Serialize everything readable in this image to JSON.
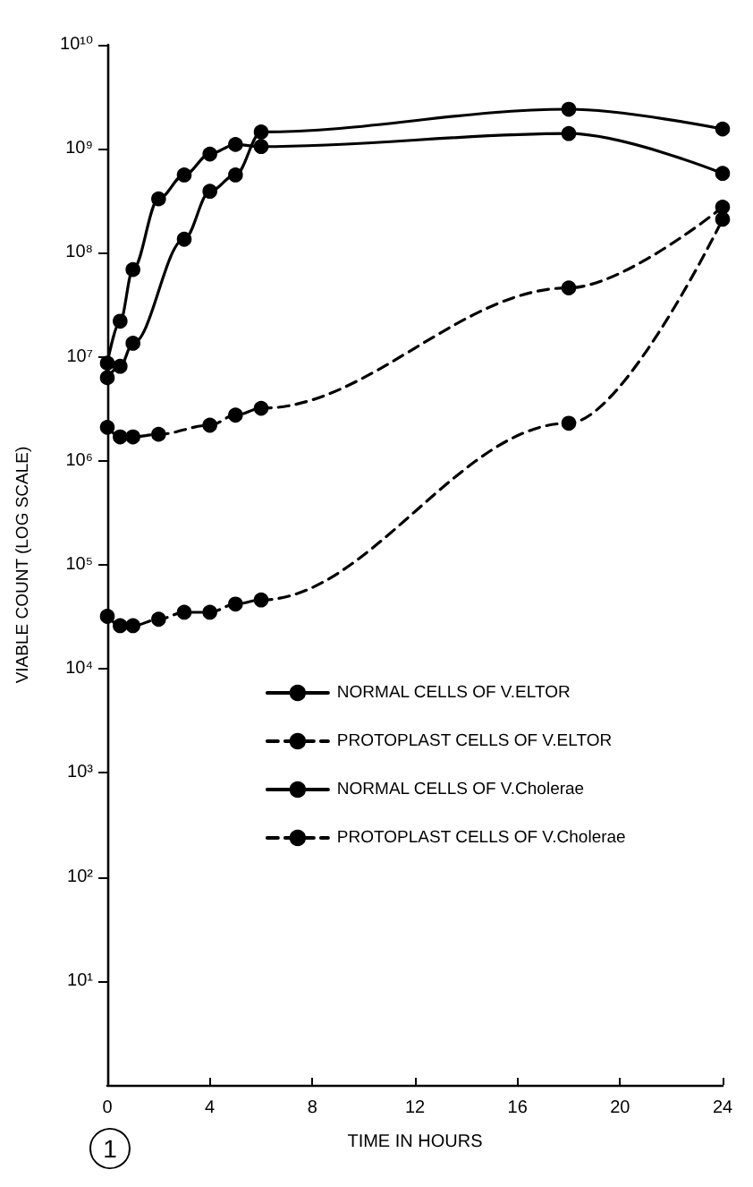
{
  "chart_data": {
    "type": "line",
    "xlabel": "TIME IN HOURS",
    "ylabel": "VIABLE COUNT (LOG SCALE)",
    "series": [
      {
        "name": "NORMAL CELLS OF V.ELTOR",
        "color": "#000000",
        "line_style": "solid",
        "x": [
          0,
          0.5,
          1,
          3,
          4,
          5,
          6,
          18,
          24
        ],
        "values": [
          6300000,
          8100000,
          13500000,
          135000000,
          390000000,
          560000000,
          1450000000,
          2400000000,
          1550000000
        ]
      },
      {
        "name": "PROTOPLAST CELLS OF V.ELTOR",
        "color": "#000000",
        "line_style": "dashed",
        "x": [
          0,
          0.5,
          1,
          2,
          3,
          4,
          5,
          6,
          18,
          24
        ],
        "values": [
          32000,
          26000,
          26000,
          30000,
          35000,
          35000,
          42000,
          46000,
          2300000,
          210000000
        ]
      },
      {
        "name": "NORMAL CELLS OF V.Cholerae",
        "color": "#000000",
        "line_style": "solid",
        "x": [
          0,
          0.5,
          1,
          2,
          3,
          4,
          5,
          6,
          18,
          24
        ],
        "values": [
          8700000,
          22000000,
          69000000,
          330000000,
          560000000,
          890000000,
          1100000000,
          1050000000,
          1400000000,
          580000000
        ]
      },
      {
        "name": "PROTOPLAST CELLS OF V.Cholerae",
        "color": "#000000",
        "line_style": "dashed",
        "x": [
          0,
          0.5,
          1,
          2,
          4,
          5,
          6,
          18,
          24
        ],
        "values": [
          2100000,
          1700000,
          1700000,
          1800000,
          2200000,
          2750000,
          3200000,
          46000000,
          275000000
        ]
      }
    ],
    "xlim": [
      0,
      24
    ],
    "xticks": [
      0,
      4,
      8,
      12,
      16,
      20,
      24
    ],
    "log": "y",
    "ylim": [
      1,
      10000000000
    ],
    "yticks": [
      {
        "value": 10,
        "label": "10¹"
      },
      {
        "value": 100,
        "label": "10²"
      },
      {
        "value": 1000,
        "label": "10³"
      },
      {
        "value": 10000,
        "label": "10⁴"
      },
      {
        "value": 100000,
        "label": "10⁵"
      },
      {
        "value": 1000000,
        "label": "10⁶"
      },
      {
        "value": 10000000,
        "label": "10⁷"
      },
      {
        "value": 100000000,
        "label": "10⁸"
      },
      {
        "value": 1000000000,
        "label": "10⁹"
      },
      {
        "value": 10000000000,
        "label": "10¹⁰"
      }
    ],
    "grid": false,
    "legend": "bottom right",
    "marker": "circle",
    "annotations": [
      "1"
    ]
  }
}
